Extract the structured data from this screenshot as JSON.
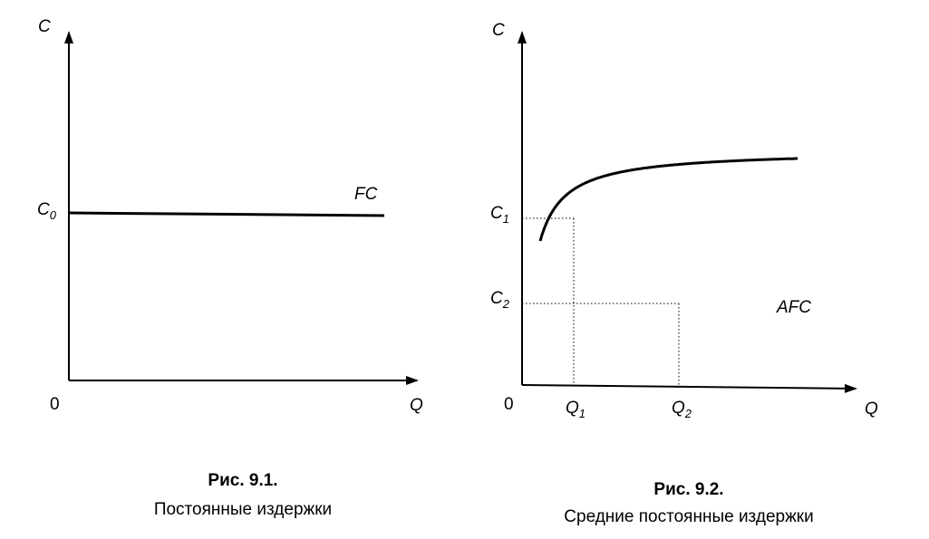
{
  "figure1": {
    "y_axis_label": "C",
    "x_axis_label": "Q",
    "origin_label": "0",
    "c0_label_main": "C",
    "c0_label_sub": "0",
    "curve_label": "FC",
    "caption_title": "Рис. 9.1.",
    "caption_text": "Постоянные издержки"
  },
  "figure2": {
    "y_axis_label": "C",
    "x_axis_label": "Q",
    "origin_label": "0",
    "c1_label_main": "C",
    "c1_label_sub": "1",
    "c2_label_main": "C",
    "c2_label_sub": "2",
    "q1_label_main": "Q",
    "q1_label_sub": "1",
    "q2_label_main": "Q",
    "q2_label_sub": "2",
    "curve_label": "AFC",
    "caption_title": "Рис. 9.2.",
    "caption_text": "Средние постоянные издержки"
  }
}
